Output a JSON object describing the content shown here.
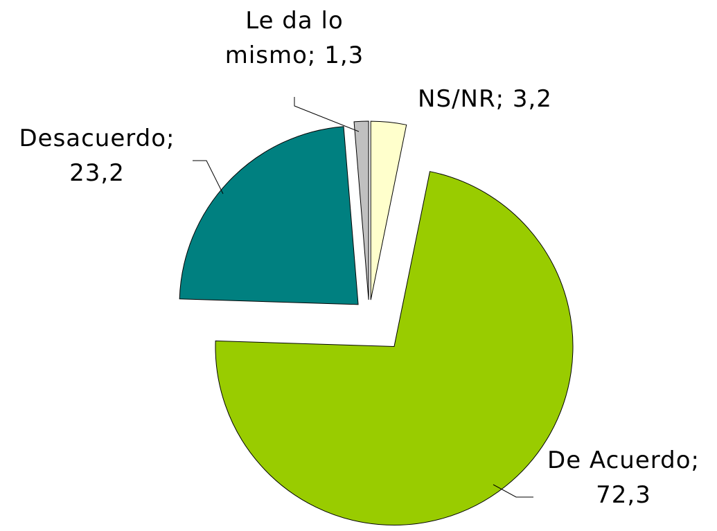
{
  "chart_data": {
    "type": "pie",
    "categories": [
      "NS/NR",
      "De Acuerdo",
      "Desacuerdo",
      "Le da lo mismo"
    ],
    "values": [
      3.2,
      72.3,
      23.2,
      1.3
    ],
    "value_labels": [
      "3,2",
      "72,3",
      "23,2",
      "1,3"
    ],
    "label_separator": ";",
    "colors": [
      "#ffffcc",
      "#99cc00",
      "#008080",
      "#c0c0c0"
    ],
    "exploded": true
  }
}
